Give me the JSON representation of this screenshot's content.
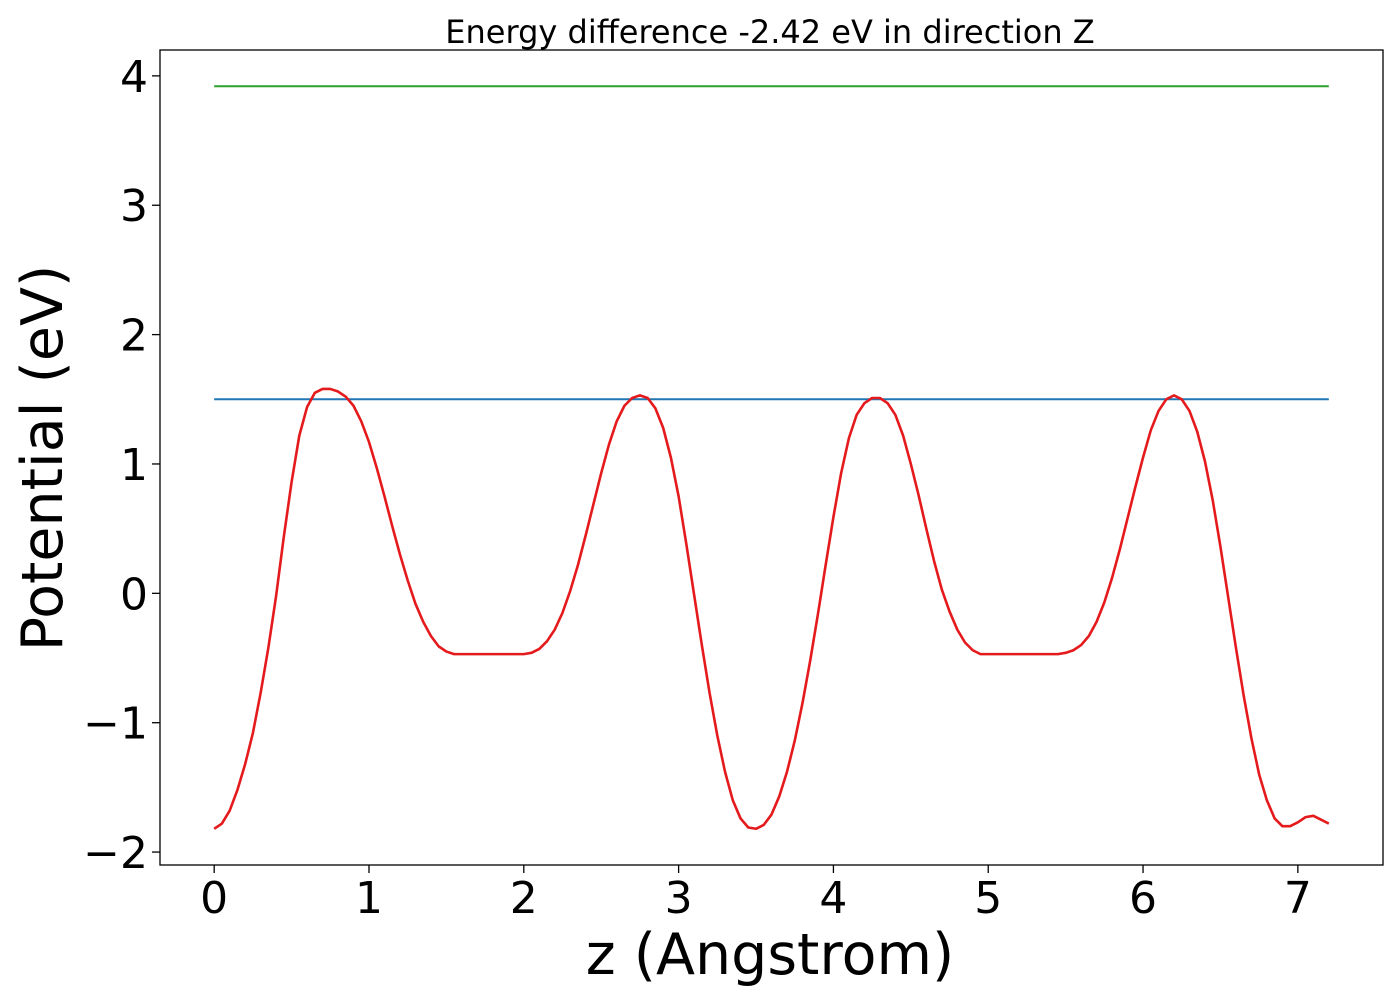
{
  "chart_data": {
    "type": "line",
    "title": "Energy difference -2.42 eV in direction Z",
    "xlabel": "z (Angstrom)",
    "ylabel": "Potential (eV)",
    "xlim": [
      -0.35,
      7.55
    ],
    "ylim": [
      -2.1,
      4.2
    ],
    "xticks": [
      0,
      1,
      2,
      3,
      4,
      5,
      6,
      7
    ],
    "xtick_labels": [
      "0",
      "1",
      "2",
      "3",
      "4",
      "5",
      "6",
      "7"
    ],
    "yticks": [
      -2,
      -1,
      0,
      1,
      2,
      3,
      4
    ],
    "ytick_labels": [
      "−2",
      "−1",
      "0",
      "1",
      "2",
      "3",
      "4"
    ],
    "grid": false,
    "legend": false,
    "series": [
      {
        "color": "#2ca02c",
        "x": [
          0,
          7.2
        ],
        "y": [
          3.92,
          3.92
        ]
      },
      {
        "color": "#1f77b4",
        "x": [
          0,
          7.2
        ],
        "y": [
          1.5,
          1.5
        ]
      },
      {
        "color": "#e41a1c",
        "x": [
          0.0,
          0.05,
          0.1,
          0.15,
          0.2,
          0.25,
          0.3,
          0.35,
          0.4,
          0.45,
          0.5,
          0.55,
          0.6,
          0.65,
          0.7,
          0.75,
          0.8,
          0.85,
          0.9,
          0.95,
          1.0,
          1.05,
          1.1,
          1.15,
          1.2,
          1.25,
          1.3,
          1.35,
          1.4,
          1.45,
          1.5,
          1.55,
          1.6,
          1.65,
          1.7,
          1.75,
          1.8,
          1.85,
          1.9,
          1.95,
          2.0,
          2.05,
          2.1,
          2.15,
          2.2,
          2.25,
          2.3,
          2.35,
          2.4,
          2.45,
          2.5,
          2.55,
          2.6,
          2.65,
          2.7,
          2.75,
          2.8,
          2.85,
          2.9,
          2.95,
          3.0,
          3.05,
          3.1,
          3.15,
          3.2,
          3.25,
          3.3,
          3.35,
          3.4,
          3.45,
          3.5,
          3.55,
          3.6,
          3.65,
          3.7,
          3.75,
          3.8,
          3.85,
          3.9,
          3.95,
          4.0,
          4.05,
          4.1,
          4.15,
          4.2,
          4.25,
          4.3,
          4.35,
          4.4,
          4.45,
          4.5,
          4.55,
          4.6,
          4.65,
          4.7,
          4.75,
          4.8,
          4.85,
          4.9,
          4.95,
          5.0,
          5.05,
          5.1,
          5.15,
          5.2,
          5.25,
          5.3,
          5.35,
          5.4,
          5.45,
          5.5,
          5.55,
          5.6,
          5.65,
          5.7,
          5.75,
          5.8,
          5.85,
          5.9,
          5.95,
          6.0,
          6.05,
          6.1,
          6.15,
          6.2,
          6.25,
          6.3,
          6.35,
          6.4,
          6.45,
          6.5,
          6.55,
          6.6,
          6.65,
          6.7,
          6.75,
          6.8,
          6.85,
          6.9,
          6.95,
          7.0,
          7.05,
          7.1,
          7.15,
          7.2
        ],
        "y": [
          -1.82,
          -1.78,
          -1.68,
          -1.52,
          -1.32,
          -1.08,
          -0.77,
          -0.42,
          -0.02,
          0.44,
          0.86,
          1.22,
          1.44,
          1.55,
          1.58,
          1.58,
          1.56,
          1.52,
          1.45,
          1.33,
          1.17,
          0.97,
          0.75,
          0.52,
          0.3,
          0.1,
          -0.08,
          -0.22,
          -0.33,
          -0.41,
          -0.45,
          -0.47,
          -0.47,
          -0.47,
          -0.47,
          -0.47,
          -0.47,
          -0.47,
          -0.47,
          -0.47,
          -0.47,
          -0.46,
          -0.43,
          -0.37,
          -0.28,
          -0.15,
          0.02,
          0.22,
          0.45,
          0.69,
          0.93,
          1.15,
          1.33,
          1.45,
          1.51,
          1.53,
          1.51,
          1.43,
          1.28,
          1.05,
          0.75,
          0.38,
          -0.01,
          -0.4,
          -0.77,
          -1.1,
          -1.38,
          -1.6,
          -1.74,
          -1.81,
          -1.82,
          -1.79,
          -1.71,
          -1.57,
          -1.38,
          -1.14,
          -0.85,
          -0.52,
          -0.16,
          0.22,
          0.59,
          0.93,
          1.2,
          1.38,
          1.47,
          1.51,
          1.51,
          1.47,
          1.38,
          1.22,
          1.0,
          0.76,
          0.5,
          0.25,
          0.03,
          -0.14,
          -0.28,
          -0.38,
          -0.44,
          -0.47,
          -0.47,
          -0.47,
          -0.47,
          -0.47,
          -0.47,
          -0.47,
          -0.47,
          -0.47,
          -0.47,
          -0.47,
          -0.46,
          -0.44,
          -0.4,
          -0.33,
          -0.22,
          -0.07,
          0.12,
          0.34,
          0.58,
          0.82,
          1.05,
          1.26,
          1.41,
          1.5,
          1.53,
          1.5,
          1.41,
          1.25,
          1.02,
          0.72,
          0.36,
          -0.03,
          -0.42,
          -0.79,
          -1.12,
          -1.4,
          -1.6,
          -1.74,
          -1.8,
          -1.8,
          -1.77,
          -1.73,
          -1.72,
          -1.75,
          -1.78
        ]
      }
    ]
  }
}
